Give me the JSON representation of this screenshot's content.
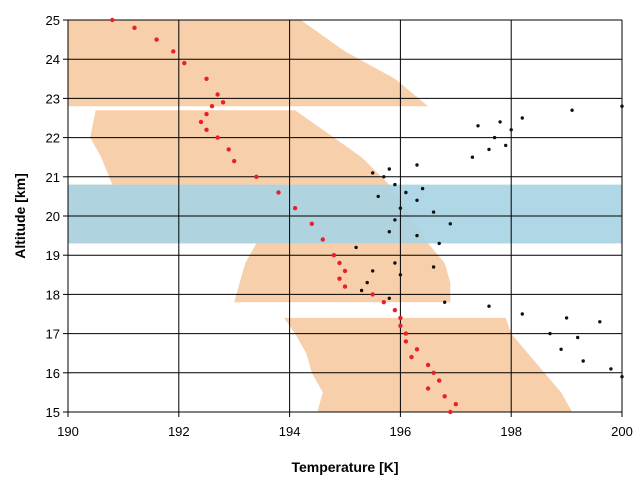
{
  "chart_data": {
    "type": "scatter",
    "xlabel": "Temperature [K]",
    "ylabel": "Altitude  [km]",
    "xlim": [
      190,
      200
    ],
    "ylim": [
      15,
      25
    ],
    "xticks": [
      190,
      192,
      194,
      196,
      198,
      200
    ],
    "yticks": [
      15,
      16,
      17,
      18,
      19,
      20,
      21,
      22,
      23,
      24,
      25
    ],
    "grid": true,
    "colors": {
      "envelope": "#f7cfaa",
      "band": "#a8d4e4",
      "red_series": "#e8202a",
      "black_series": "#111111",
      "grid": "#000000"
    },
    "band": {
      "ymin": 19.3,
      "ymax": 20.8
    },
    "envelopes": [
      {
        "y": [
          15.0,
          15.5,
          16.0,
          16.5,
          17.0,
          17.4
        ],
        "xmin": [
          194.5,
          194.6,
          194.4,
          194.3,
          194.1,
          193.9
        ],
        "xmax": [
          199.1,
          198.9,
          198.6,
          198.3,
          198.0,
          197.9
        ]
      },
      {
        "y": [
          17.8,
          18.3,
          18.8,
          19.3
        ],
        "xmin": [
          193.0,
          193.1,
          193.2,
          193.4
        ],
        "xmax": [
          196.9,
          196.9,
          196.8,
          196.5
        ]
      },
      {
        "y": [
          19.3,
          20.0,
          20.8
        ],
        "xmin": [
          190.0,
          190.0,
          190.0
        ],
        "xmax": [
          196.5,
          196.2,
          195.8
        ]
      },
      {
        "y": [
          20.8,
          21.5,
          22.0,
          22.7
        ],
        "xmin": [
          190.8,
          190.6,
          190.4,
          190.5
        ],
        "xmax": [
          195.8,
          195.3,
          194.8,
          194.1
        ]
      },
      {
        "y": [
          22.8,
          23.5,
          24.2,
          25.0
        ],
        "xmin": [
          190.0,
          190.0,
          190.0,
          190.0
        ],
        "xmax": [
          196.5,
          195.9,
          195.0,
          194.2
        ]
      }
    ],
    "series": [
      {
        "x": [
          196.9,
          197.0,
          196.8,
          196.5,
          196.7,
          196.6,
          196.5,
          196.2,
          196.3,
          196.1,
          196.1,
          196.0,
          196.0,
          195.9,
          195.7,
          195.5,
          195.0,
          194.9,
          195.0,
          194.9,
          194.8,
          194.6,
          194.4,
          194.1,
          193.8,
          193.4,
          193.0,
          192.9,
          192.7,
          192.5,
          192.4,
          192.5,
          192.6,
          192.8,
          192.7,
          192.5,
          192.1,
          191.9,
          191.6,
          191.2,
          190.8
        ],
        "y": [
          15.0,
          15.2,
          15.4,
          15.6,
          15.8,
          16.0,
          16.2,
          16.4,
          16.6,
          16.8,
          17.0,
          17.2,
          17.4,
          17.6,
          17.8,
          18.0,
          18.2,
          18.4,
          18.6,
          18.8,
          19.0,
          19.4,
          19.8,
          20.2,
          20.6,
          21.0,
          21.4,
          21.7,
          22.0,
          22.2,
          22.4,
          22.6,
          22.8,
          22.9,
          23.1,
          23.5,
          23.9,
          24.2,
          24.5,
          24.8,
          25.0
        ]
      },
      {
        "x": [
          200.0,
          199.8,
          199.3,
          198.9,
          199.2,
          198.7,
          199.6,
          199.0,
          198.2,
          197.6,
          196.8,
          195.8,
          195.3,
          195.4,
          196.0,
          195.5,
          195.9,
          196.6,
          195.2,
          196.7,
          195.8,
          195.9,
          196.0,
          195.6,
          196.1,
          196.4,
          196.3,
          196.6,
          196.9,
          196.3,
          195.9,
          195.7,
          195.8,
          195.5,
          196.3,
          197.3,
          197.6,
          197.9,
          197.7,
          198.0,
          197.8,
          197.4,
          198.2,
          199.1,
          200.0
        ],
        "y": [
          15.9,
          16.1,
          16.3,
          16.6,
          16.9,
          17.0,
          17.3,
          17.4,
          17.5,
          17.7,
          17.8,
          17.9,
          18.1,
          18.3,
          18.5,
          18.6,
          18.8,
          18.7,
          19.2,
          19.3,
          19.6,
          19.9,
          20.2,
          20.5,
          20.6,
          20.7,
          20.4,
          20.1,
          19.8,
          19.5,
          20.8,
          21.0,
          21.2,
          21.1,
          21.3,
          21.5,
          21.7,
          21.8,
          22.0,
          22.2,
          22.4,
          22.3,
          22.5,
          22.7,
          22.8
        ]
      }
    ]
  }
}
